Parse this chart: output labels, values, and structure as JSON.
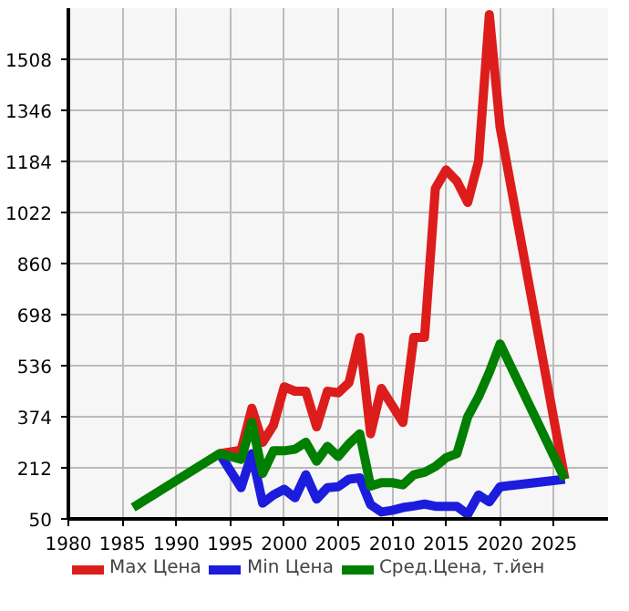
{
  "chart_data": {
    "type": "line",
    "xlim": [
      1980,
      2030
    ],
    "ylim": [
      50,
      1670
    ],
    "xticks": [
      1980,
      1985,
      1990,
      1995,
      2000,
      2005,
      2010,
      2015,
      2020,
      2025
    ],
    "yticks": [
      50,
      212,
      374,
      536,
      698,
      860,
      1022,
      1184,
      1346,
      1508
    ],
    "grid": true,
    "legend": "bottom",
    "marker": "none",
    "line_style": "solid",
    "series": [
      {
        "name": "Max Цена",
        "color": "#dd1c1c",
        "x": [
          1994,
          1996,
          1997,
          1998,
          1999,
          2000,
          2001,
          2002,
          2003,
          2004,
          2005,
          2006,
          2007,
          2008,
          2009,
          2010,
          2011,
          2012,
          2013,
          2014,
          2015,
          2016,
          2017,
          2018,
          2019,
          2020,
          2026
        ],
        "values": [
          257,
          268,
          401,
          293,
          347,
          469,
          455,
          455,
          342,
          455,
          450,
          482,
          626,
          320,
          464,
          410,
          356,
          626,
          626,
          1098,
          1157,
          1121,
          1054,
          1184,
          1650,
          1292,
          176
        ]
      },
      {
        "name": "Min Цена",
        "color": "#1c1cdd",
        "x": [
          1994,
          1996,
          1997,
          1998,
          1999,
          2000,
          2001,
          2002,
          2003,
          2004,
          2005,
          2006,
          2007,
          2008,
          2009,
          2010,
          2011,
          2012,
          2013,
          2014,
          2015,
          2016,
          2017,
          2018,
          2019,
          2020,
          2026
        ],
        "values": [
          257,
          149,
          257,
          100,
          126,
          144,
          117,
          190,
          113,
          149,
          152,
          176,
          180,
          95,
          72,
          77,
          86,
          91,
          97,
          90,
          90,
          90,
          64,
          126,
          104,
          152,
          176
        ]
      },
      {
        "name": "Сред.Цена, т.йен",
        "color": "#007f00",
        "x": [
          1986,
          1994,
          1996,
          1997,
          1998,
          1999,
          2000,
          2001,
          2002,
          2003,
          2004,
          2005,
          2006,
          2007,
          2008,
          2009,
          2010,
          2011,
          2012,
          2013,
          2014,
          2015,
          2016,
          2017,
          2018,
          2019,
          2020,
          2026
        ],
        "values": [
          86,
          257,
          239,
          356,
          194,
          266,
          266,
          271,
          293,
          233,
          280,
          248,
          288,
          320,
          154,
          165,
          165,
          158,
          190,
          198,
          216,
          244,
          257,
          374,
          437,
          515,
          605,
          176
        ]
      }
    ]
  }
}
